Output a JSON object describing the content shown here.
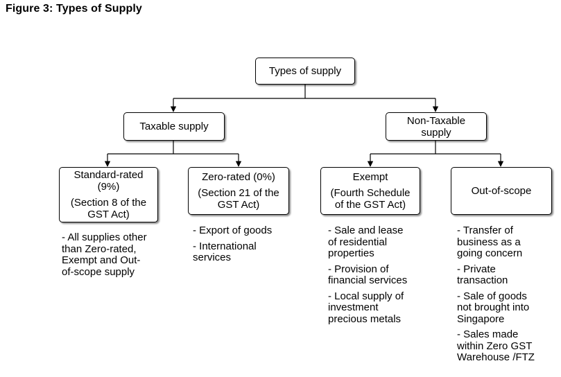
{
  "figure": {
    "title": "Figure 3: Types of Supply"
  },
  "root": {
    "label": "Types of supply"
  },
  "taxable": {
    "label": "Taxable supply"
  },
  "non_taxable": {
    "lines": [
      "Non-Taxable",
      "supply"
    ]
  },
  "standard_rated": {
    "title_lines": [
      "Standard-rated",
      "(9%)"
    ],
    "ref_lines": [
      "(Section 8 of the",
      "GST Act)"
    ],
    "notes": [
      [
        "- All supplies other",
        "than Zero-rated,",
        "Exempt  and Out-",
        "of-scope supply"
      ]
    ]
  },
  "zero_rated": {
    "title_lines": [
      "Zero-rated (0%)"
    ],
    "ref_lines": [
      "(Section 21 of the",
      "GST Act)"
    ],
    "notes": [
      [
        "- Export of goods"
      ],
      [
        "- International",
        "services"
      ]
    ]
  },
  "exempt": {
    "title_lines": [
      "Exempt"
    ],
    "ref_lines": [
      "(Fourth Schedule",
      "of the GST Act)"
    ],
    "notes": [
      [
        "- Sale and lease",
        "of residential",
        "properties"
      ],
      [
        "- Provision of",
        "financial services"
      ],
      [
        "- Local supply of",
        "investment",
        "precious metals"
      ]
    ]
  },
  "out_of_scope": {
    "title_lines": [
      "Out-of-scope"
    ],
    "notes": [
      [
        "- Transfer of",
        "business as a",
        "going concern"
      ],
      [
        "- Private",
        "transaction"
      ],
      [
        "- Sale of goods",
        "not brought into",
        "Singapore"
      ],
      [
        "- Sales made",
        "within Zero GST",
        "Warehouse /FTZ"
      ]
    ]
  }
}
